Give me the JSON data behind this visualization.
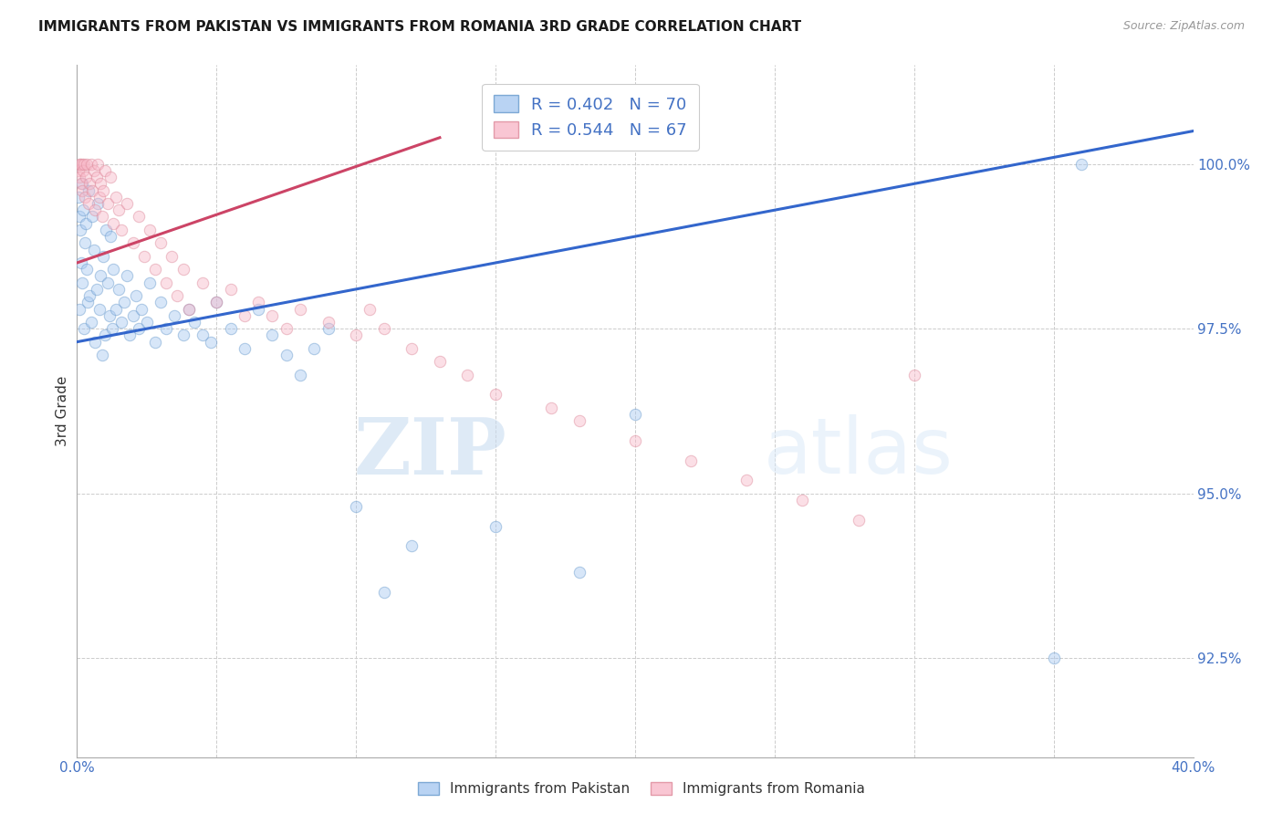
{
  "title": "IMMIGRANTS FROM PAKISTAN VS IMMIGRANTS FROM ROMANIA 3RD GRADE CORRELATION CHART",
  "source": "Source: ZipAtlas.com",
  "ylabel": "3rd Grade",
  "xlim_pct": [
    0.0,
    40.0
  ],
  "ylim": [
    91.0,
    101.5
  ],
  "yticks": [
    92.5,
    95.0,
    97.5,
    100.0
  ],
  "ytick_labels": [
    "92.5%",
    "95.0%",
    "97.5%",
    "100.0%"
  ],
  "xtick_positions": [
    0.0,
    5.0,
    10.0,
    15.0,
    20.0,
    25.0,
    30.0,
    35.0,
    40.0
  ],
  "xtick_labels": [
    "0.0%",
    "",
    "",
    "",
    "",
    "",
    "",
    "",
    "40.0%"
  ],
  "pakistan_color": "#A8C8F0",
  "pakistan_edge_color": "#6699CC",
  "romania_color": "#F8B8C8",
  "romania_edge_color": "#DD8899",
  "pakistan_R": 0.402,
  "pakistan_N": 70,
  "romania_R": 0.544,
  "romania_N": 67,
  "trend_pakistan_color": "#3366CC",
  "trend_romania_color": "#CC4466",
  "pakistan_trend_x": [
    0.0,
    40.0
  ],
  "pakistan_trend_y": [
    97.3,
    100.5
  ],
  "romania_trend_x": [
    0.0,
    13.0
  ],
  "romania_trend_y": [
    98.5,
    100.4
  ],
  "pakistan_x": [
    0.05,
    0.08,
    0.1,
    0.12,
    0.15,
    0.18,
    0.2,
    0.22,
    0.25,
    0.28,
    0.3,
    0.35,
    0.38,
    0.4,
    0.45,
    0.5,
    0.55,
    0.6,
    0.65,
    0.7,
    0.75,
    0.8,
    0.85,
    0.9,
    0.95,
    1.0,
    1.05,
    1.1,
    1.15,
    1.2,
    1.25,
    1.3,
    1.4,
    1.5,
    1.6,
    1.7,
    1.8,
    1.9,
    2.0,
    2.1,
    2.2,
    2.3,
    2.5,
    2.6,
    2.8,
    3.0,
    3.2,
    3.5,
    3.8,
    4.0,
    4.2,
    4.5,
    4.8,
    5.0,
    5.5,
    6.0,
    6.5,
    7.0,
    7.5,
    8.0,
    8.5,
    9.0,
    10.0,
    11.0,
    12.0,
    15.0,
    18.0,
    20.0,
    35.0,
    36.0
  ],
  "pakistan_y": [
    99.5,
    99.2,
    97.8,
    99.0,
    98.5,
    99.7,
    98.2,
    99.3,
    97.5,
    98.8,
    99.1,
    98.4,
    97.9,
    99.6,
    98.0,
    97.6,
    99.2,
    98.7,
    97.3,
    98.1,
    99.4,
    97.8,
    98.3,
    97.1,
    98.6,
    97.4,
    99.0,
    98.2,
    97.7,
    98.9,
    97.5,
    98.4,
    97.8,
    98.1,
    97.6,
    97.9,
    98.3,
    97.4,
    97.7,
    98.0,
    97.5,
    97.8,
    97.6,
    98.2,
    97.3,
    97.9,
    97.5,
    97.7,
    97.4,
    97.8,
    97.6,
    97.4,
    97.3,
    97.9,
    97.5,
    97.2,
    97.8,
    97.4,
    97.1,
    96.8,
    97.2,
    97.5,
    94.8,
    93.5,
    94.2,
    94.5,
    93.8,
    96.2,
    92.5,
    100.0
  ],
  "romania_x": [
    0.05,
    0.08,
    0.1,
    0.12,
    0.15,
    0.18,
    0.2,
    0.22,
    0.25,
    0.28,
    0.3,
    0.35,
    0.4,
    0.45,
    0.5,
    0.55,
    0.6,
    0.65,
    0.7,
    0.75,
    0.8,
    0.85,
    0.9,
    0.95,
    1.0,
    1.1,
    1.2,
    1.3,
    1.4,
    1.5,
    1.6,
    1.8,
    2.0,
    2.2,
    2.4,
    2.6,
    2.8,
    3.0,
    3.2,
    3.4,
    3.6,
    3.8,
    4.0,
    4.5,
    5.0,
    5.5,
    6.0,
    6.5,
    7.0,
    7.5,
    8.0,
    9.0,
    10.0,
    10.5,
    11.0,
    12.0,
    13.0,
    14.0,
    15.0,
    17.0,
    18.0,
    20.0,
    22.0,
    24.0,
    26.0,
    28.0,
    30.0
  ],
  "romania_y": [
    99.9,
    100.0,
    99.8,
    100.0,
    99.7,
    100.0,
    99.6,
    99.9,
    100.0,
    99.5,
    99.8,
    100.0,
    99.4,
    99.7,
    100.0,
    99.6,
    99.9,
    99.3,
    99.8,
    100.0,
    99.5,
    99.7,
    99.2,
    99.6,
    99.9,
    99.4,
    99.8,
    99.1,
    99.5,
    99.3,
    99.0,
    99.4,
    98.8,
    99.2,
    98.6,
    99.0,
    98.4,
    98.8,
    98.2,
    98.6,
    98.0,
    98.4,
    97.8,
    98.2,
    97.9,
    98.1,
    97.7,
    97.9,
    97.7,
    97.5,
    97.8,
    97.6,
    97.4,
    97.8,
    97.5,
    97.2,
    97.0,
    96.8,
    96.5,
    96.3,
    96.1,
    95.8,
    95.5,
    95.2,
    94.9,
    94.6,
    96.8
  ],
  "watermark_zip": "ZIP",
  "watermark_atlas": "atlas",
  "marker_size": 80,
  "alpha": 0.45,
  "line_width": 2.2
}
